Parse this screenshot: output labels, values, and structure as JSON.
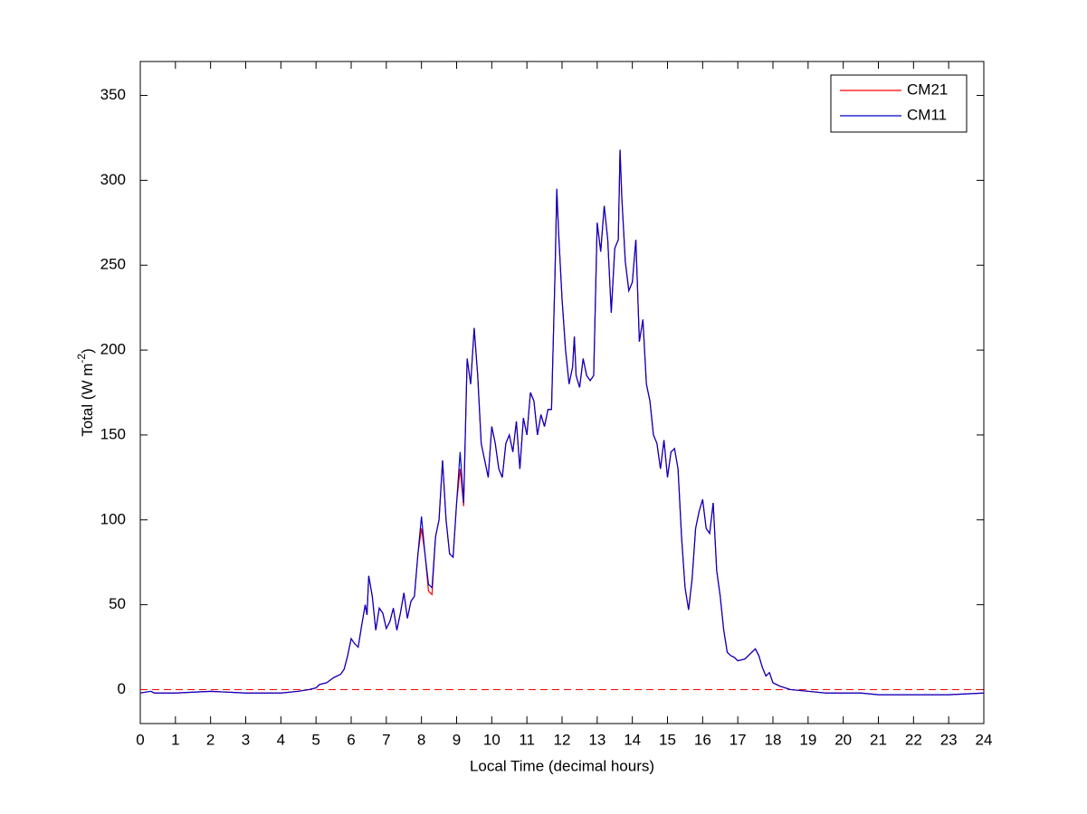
{
  "chart_data": {
    "type": "line",
    "xlabel": "Local Time (decimal hours)",
    "ylabel": {
      "text": "Total (W m",
      "superscript": "-2",
      "end": ")"
    },
    "x": [
      0,
      0.3,
      0.4,
      1,
      2,
      3,
      4,
      4.5,
      4.8,
      5,
      5.1,
      5.3,
      5.5,
      5.7,
      5.8,
      5.9,
      6,
      6.1,
      6.2,
      6.3,
      6.4,
      6.45,
      6.5,
      6.6,
      6.7,
      6.8,
      6.9,
      7,
      7.1,
      7.2,
      7.3,
      7.4,
      7.5,
      7.6,
      7.7,
      7.8,
      7.9,
      8,
      8.1,
      8.2,
      8.3,
      8.4,
      8.5,
      8.6,
      8.7,
      8.8,
      8.9,
      9,
      9.1,
      9.2,
      9.3,
      9.4,
      9.5,
      9.6,
      9.7,
      9.8,
      9.9,
      10,
      10.1,
      10.2,
      10.3,
      10.4,
      10.5,
      10.6,
      10.7,
      10.8,
      10.9,
      11,
      11.1,
      11.2,
      11.3,
      11.4,
      11.5,
      11.6,
      11.7,
      11.8,
      11.85,
      11.9,
      12,
      12.1,
      12.2,
      12.3,
      12.35,
      12.4,
      12.5,
      12.6,
      12.7,
      12.8,
      12.9,
      13,
      13.1,
      13.2,
      13.3,
      13.4,
      13.5,
      13.6,
      13.65,
      13.7,
      13.8,
      13.9,
      14,
      14.1,
      14.2,
      14.3,
      14.4,
      14.5,
      14.6,
      14.7,
      14.8,
      14.9,
      15,
      15.1,
      15.2,
      15.3,
      15.4,
      15.5,
      15.6,
      15.7,
      15.8,
      15.9,
      16,
      16.1,
      16.2,
      16.3,
      16.4,
      16.5,
      16.6,
      16.7,
      16.8,
      16.9,
      17,
      17.2,
      17.4,
      17.5,
      17.6,
      17.7,
      17.8,
      17.9,
      18,
      18.2,
      18.5,
      19,
      19.5,
      20,
      20.5,
      21,
      22,
      23,
      24
    ],
    "series": [
      {
        "name": "CM21",
        "color": "#ff0000",
        "values": [
          -2,
          -1,
          -2,
          -2,
          -1,
          -2,
          -2,
          -1,
          0,
          1,
          3,
          4,
          7,
          9,
          12,
          20,
          30,
          27,
          25,
          38,
          50,
          44,
          67,
          55,
          35,
          48,
          45,
          36,
          40,
          48,
          35,
          45,
          57,
          42,
          52,
          55,
          80,
          95,
          80,
          58,
          56,
          90,
          100,
          135,
          100,
          80,
          78,
          110,
          130,
          108,
          195,
          180,
          213,
          185,
          145,
          135,
          125,
          155,
          145,
          130,
          125,
          145,
          150,
          140,
          158,
          130,
          160,
          150,
          175,
          170,
          150,
          162,
          155,
          165,
          165,
          245,
          295,
          270,
          230,
          200,
          180,
          190,
          208,
          185,
          178,
          195,
          185,
          182,
          185,
          275,
          258,
          285,
          265,
          222,
          260,
          265,
          318,
          290,
          252,
          235,
          240,
          265,
          205,
          218,
          180,
          170,
          150,
          145,
          130,
          147,
          125,
          140,
          142,
          130,
          90,
          60,
          47,
          65,
          95,
          105,
          112,
          95,
          92,
          110,
          70,
          55,
          35,
          22,
          20,
          19,
          17,
          18,
          22,
          24,
          20,
          13,
          8,
          10,
          4,
          2,
          0,
          -1,
          -2,
          -2,
          -2,
          -3,
          -3,
          -3,
          -2
        ]
      },
      {
        "name": "CM11",
        "color": "#0000cc",
        "values": [
          -2,
          -1,
          -2,
          -2,
          -1,
          -2,
          -2,
          -1,
          0,
          1,
          3,
          4,
          7,
          9,
          12,
          20,
          30,
          27,
          25,
          38,
          50,
          44,
          67,
          55,
          35,
          48,
          45,
          36,
          40,
          48,
          35,
          45,
          57,
          42,
          52,
          55,
          80,
          102,
          80,
          62,
          60,
          90,
          100,
          135,
          100,
          80,
          78,
          110,
          140,
          110,
          195,
          180,
          213,
          185,
          145,
          135,
          125,
          155,
          145,
          130,
          125,
          145,
          150,
          140,
          158,
          130,
          160,
          150,
          175,
          170,
          150,
          162,
          155,
          165,
          165,
          245,
          295,
          270,
          230,
          200,
          180,
          190,
          208,
          185,
          178,
          195,
          185,
          182,
          185,
          275,
          258,
          285,
          265,
          222,
          260,
          265,
          318,
          290,
          252,
          235,
          240,
          265,
          205,
          218,
          180,
          170,
          150,
          145,
          130,
          147,
          125,
          140,
          142,
          130,
          90,
          60,
          47,
          65,
          95,
          105,
          112,
          95,
          92,
          110,
          70,
          55,
          35,
          22,
          20,
          19,
          17,
          18,
          22,
          24,
          20,
          13,
          8,
          10,
          4,
          2,
          0,
          -1,
          -2,
          -2,
          -2,
          -3,
          -3,
          -3,
          -2
        ]
      }
    ],
    "xlim": [
      0,
      24
    ],
    "xticks": [
      0,
      1,
      2,
      3,
      4,
      5,
      6,
      7,
      8,
      9,
      10,
      11,
      12,
      13,
      14,
      15,
      16,
      17,
      18,
      19,
      20,
      21,
      22,
      23,
      24
    ],
    "ylim": [
      -20,
      370
    ],
    "yticks": [
      0,
      50,
      100,
      150,
      200,
      250,
      300,
      350
    ],
    "reference_line": {
      "value": 0,
      "color": "#ff0000",
      "dashed": true
    },
    "legend": "top-right"
  }
}
